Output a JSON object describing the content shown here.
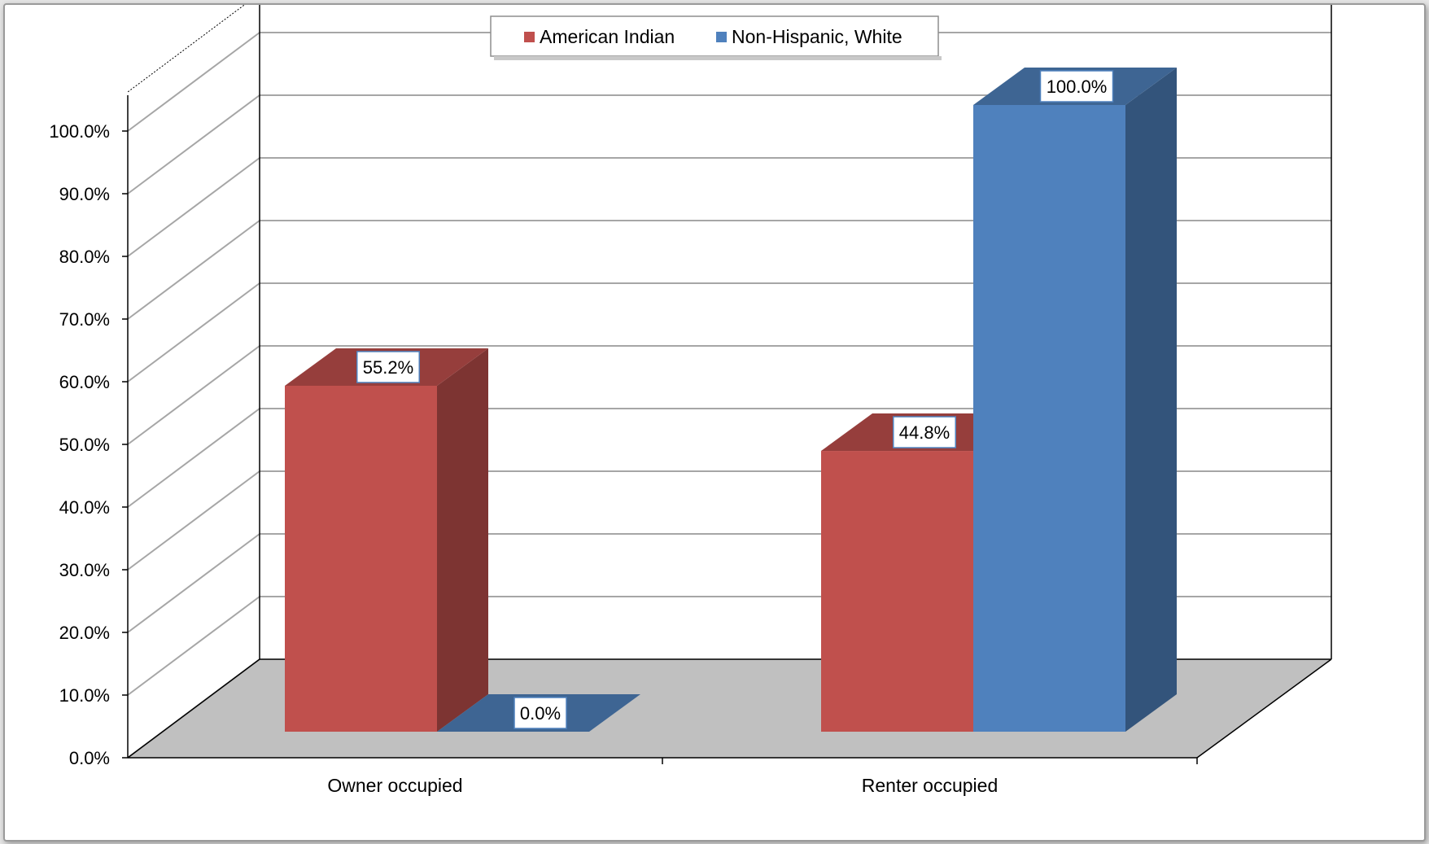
{
  "chart_data": {
    "type": "bar",
    "categories": [
      "Owner occupied",
      "Renter occupied"
    ],
    "series": [
      {
        "name": "American Indian",
        "values": [
          55.2,
          44.8
        ],
        "labels": [
          "55.2%",
          "44.8%"
        ],
        "color": "#c0504d"
      },
      {
        "name": "Non-Hispanic, White",
        "values": [
          0.0,
          100.0
        ],
        "labels": [
          "0.0%",
          "100.0%"
        ],
        "color": "#4f81bd"
      }
    ],
    "yticks": [
      "0.0%",
      "10.0%",
      "20.0%",
      "30.0%",
      "40.0%",
      "50.0%",
      "60.0%",
      "70.0%",
      "80.0%",
      "90.0%",
      "100.0%"
    ],
    "ylim": [
      0,
      100
    ],
    "legend_position": "top-center",
    "grid": true,
    "style": "3d-clustered-column",
    "colors": {
      "floor": "#c0c0c0",
      "grid": "#a6a6a6",
      "wall_line": "#000000"
    }
  }
}
